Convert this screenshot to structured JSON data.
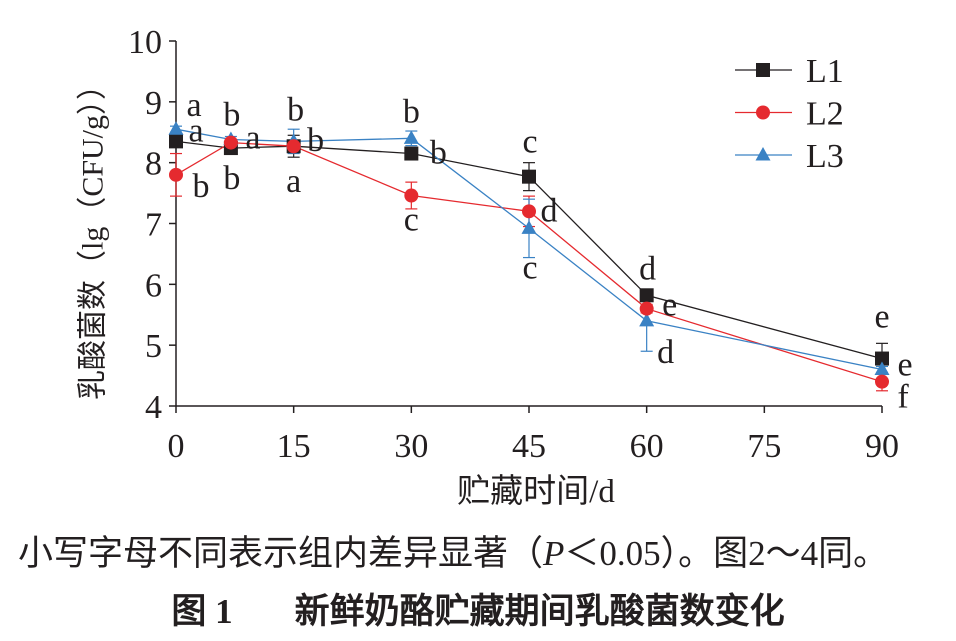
{
  "chart_data": {
    "type": "line",
    "title": "新鲜奶酪贮藏期间乳酸菌数变化",
    "xlabel": "贮藏时间/d",
    "ylabel": "乳酸菌数（lg（CFU/g））",
    "xlim": [
      0,
      90
    ],
    "ylim": [
      4,
      10
    ],
    "x_ticks": [
      0,
      15,
      30,
      45,
      60,
      75,
      90
    ],
    "y_ticks": [
      4,
      5,
      6,
      7,
      8,
      9,
      10
    ],
    "grid": false,
    "legend_position": "top-right",
    "x": [
      0,
      7,
      15,
      30,
      45,
      60,
      90
    ],
    "series": [
      {
        "name": "L1",
        "color": "#231f20",
        "marker": "square",
        "values": [
          8.35,
          8.24,
          8.27,
          8.15,
          7.77,
          5.82,
          4.78
        ],
        "error": [
          0.05,
          0.05,
          0.18,
          0.08,
          0.23,
          0.1,
          0.25
        ],
        "letters": [
          "a",
          "b",
          "b",
          "b",
          "c",
          "d",
          "e"
        ]
      },
      {
        "name": "L2",
        "color": "#e52a2f",
        "marker": "circle",
        "values": [
          7.8,
          8.33,
          8.27,
          7.46,
          7.2,
          5.6,
          4.4
        ],
        "error": [
          0.35,
          0.05,
          0.1,
          0.22,
          0.25,
          0.07,
          0.15
        ],
        "letters": [
          "b",
          "a",
          "a",
          "c",
          "d",
          "e",
          "f"
        ]
      },
      {
        "name": "L3",
        "color": "#3a82c4",
        "marker": "triangle",
        "values": [
          8.55,
          8.38,
          8.35,
          8.4,
          6.92,
          5.4,
          4.6
        ],
        "error": [
          0.05,
          0.05,
          0.2,
          0.12,
          0.48,
          0.5,
          0.05
        ],
        "letters": [
          "a",
          "b",
          "b",
          "b",
          "c",
          "d",
          "e"
        ]
      }
    ]
  },
  "note": {
    "before": "小写字母不同表示组内差异显著（",
    "symbol": "P",
    "after": "＜0.05）。图2～4同。"
  },
  "figure": {
    "label": "图 1"
  }
}
